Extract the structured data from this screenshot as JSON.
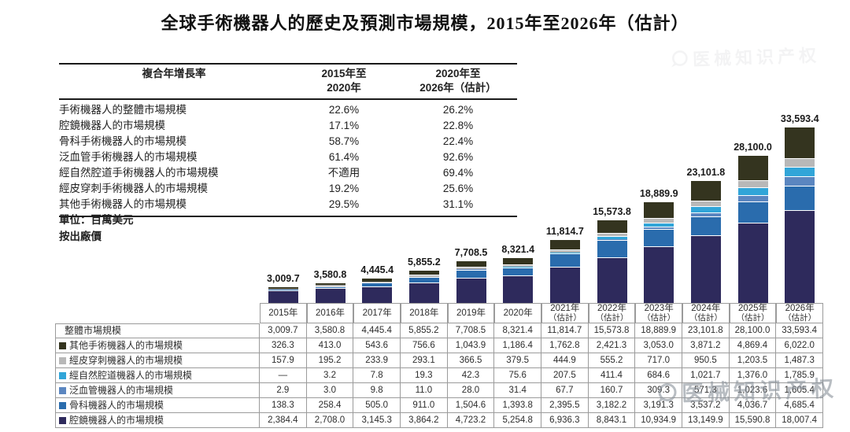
{
  "title": "全球手術機器人的歷史及預測市場規模，2015年至2026年（估計）",
  "cagr_table": {
    "header": {
      "label": "複合年增長率",
      "col1_line1": "2015年至",
      "col1_line2": "2020年",
      "col2_line1": "2020年至",
      "col2_line2": "2026年（估計）"
    },
    "rows": [
      {
        "label": "手術機器人的整體市場規模",
        "cagr_2015_2020": "22.6%",
        "cagr_2020_2026": "26.2%"
      },
      {
        "label": "腔鏡機器人的市場規模",
        "cagr_2015_2020": "17.1%",
        "cagr_2020_2026": "22.8%"
      },
      {
        "label": "骨科手術機器人的市場規模",
        "cagr_2015_2020": "58.7%",
        "cagr_2020_2026": "22.4%"
      },
      {
        "label": "泛血管手術機器人的市場規模",
        "cagr_2015_2020": "61.4%",
        "cagr_2020_2026": "92.6%"
      },
      {
        "label": "經自然腔道手術機器人的市場規模",
        "cagr_2015_2020": "不適用",
        "cagr_2020_2026": "69.4%"
      },
      {
        "label": "經皮穿刺手術機器人的市場規模",
        "cagr_2015_2020": "19.2%",
        "cagr_2020_2026": "25.6%"
      },
      {
        "label": "其他手術機器人的市場規模",
        "cagr_2015_2020": "29.5%",
        "cagr_2020_2026": "31.1%"
      }
    ]
  },
  "unit_note_line1": "單位：百萬美元",
  "unit_note_line2": "按出廠價",
  "watermark_text": "医械知识产权",
  "chart_data": {
    "type": "bar",
    "stacked": true,
    "title": "全球手術機器人的歷史及預測市場規模，2015年至2026年（估計）",
    "unit": "百萬美元（按出廠價）",
    "grid": false,
    "ylim": [
      0,
      35000
    ],
    "legend_position": "table-rows",
    "years": [
      {
        "label": "2015年",
        "estimate": false
      },
      {
        "label": "2016年",
        "estimate": false
      },
      {
        "label": "2017年",
        "estimate": false
      },
      {
        "label": "2018年",
        "estimate": false
      },
      {
        "label": "2019年",
        "estimate": false
      },
      {
        "label": "2020年",
        "estimate": false
      },
      {
        "label": "2021年",
        "estimate": true
      },
      {
        "label": "2022年",
        "estimate": true
      },
      {
        "label": "2023年",
        "estimate": true
      },
      {
        "label": "2024年",
        "estimate": true
      },
      {
        "label": "2025年",
        "estimate": true
      },
      {
        "label": "2026年",
        "estimate": true
      }
    ],
    "estimate_suffix": "（估計）",
    "total_row_label": "整體市場規模",
    "totals": [
      3009.7,
      3580.8,
      4445.4,
      5855.2,
      7708.5,
      8321.4,
      11814.7,
      15573.8,
      18889.9,
      23101.8,
      28100.0,
      33593.4
    ],
    "totals_formatted": [
      "3,009.7",
      "3,580.8",
      "4,445.4",
      "5,855.2",
      "7,708.5",
      "8,321.4",
      "11,814.7",
      "15,573.8",
      "18,889.9",
      "23,101.8",
      "28,100.0",
      "33,593.4"
    ],
    "series": [
      {
        "key": "qiangjing",
        "label": "腔鏡機器人的市場規模",
        "color": "#2e2a5c",
        "values": [
          2384.4,
          2708.0,
          3145.3,
          3864.2,
          4723.2,
          5254.8,
          6936.3,
          8843.1,
          10934.9,
          13149.9,
          15590.8,
          18007.4
        ],
        "formatted": [
          "2,384.4",
          "2,708.0",
          "3,145.3",
          "3,864.2",
          "4,723.2",
          "5,254.8",
          "6,936.3",
          "8,843.1",
          "10,934.9",
          "13,149.9",
          "15,590.8",
          "18,007.4"
        ]
      },
      {
        "key": "guke",
        "label": "骨科機器人的市場規模",
        "color": "#2a6cad",
        "values": [
          138.3,
          258.4,
          505.0,
          911.0,
          1504.6,
          1393.8,
          2395.5,
          3182.2,
          3191.3,
          3537.2,
          4036.7,
          4685.4
        ],
        "formatted": [
          "138.3",
          "258.4",
          "505.0",
          "911.0",
          "1,504.6",
          "1,393.8",
          "2,395.5",
          "3,182.2",
          "3,191.3",
          "3,537.2",
          "4,036.7",
          "4,685.4"
        ]
      },
      {
        "key": "fanxueguan",
        "label": "泛血管機器人的市場規模",
        "color": "#5b86c0",
        "values": [
          2.9,
          3.0,
          9.8,
          11.0,
          28.0,
          31.4,
          67.7,
          160.7,
          309.3,
          571.3,
          1023.6,
          1605.4
        ],
        "formatted": [
          "2.9",
          "3.0",
          "9.8",
          "11.0",
          "28.0",
          "31.4",
          "67.7",
          "160.7",
          "309.3",
          "571.3",
          "1,023.6",
          "1,605.4"
        ]
      },
      {
        "key": "ziranqiangdao",
        "label": "經自然腔道機器人的市場規模",
        "color": "#31a5d8",
        "values": [
          null,
          3.2,
          7.8,
          19.3,
          42.3,
          75.6,
          207.5,
          411.4,
          684.6,
          1021.7,
          1376.0,
          1785.9
        ],
        "formatted": [
          "—",
          "3.2",
          "7.8",
          "19.3",
          "42.3",
          "75.6",
          "207.5",
          "411.4",
          "684.6",
          "1,021.7",
          "1,376.0",
          "1,785.9"
        ]
      },
      {
        "key": "jingpichuanci",
        "label": "經皮穿刺機器人的市場規模",
        "color": "#b8b8b8",
        "values": [
          157.9,
          195.2,
          233.9,
          293.1,
          366.5,
          379.5,
          444.9,
          555.2,
          717.0,
          950.5,
          1203.5,
          1487.3
        ],
        "formatted": [
          "157.9",
          "195.2",
          "233.9",
          "293.1",
          "366.5",
          "379.5",
          "444.9",
          "555.2",
          "717.0",
          "950.5",
          "1,203.5",
          "1,487.3"
        ]
      },
      {
        "key": "qita",
        "label": "其他手術機器人的市場規模",
        "color": "#34341f",
        "values": [
          326.3,
          413.0,
          543.6,
          756.6,
          1043.9,
          1186.4,
          1762.8,
          2421.3,
          3053.0,
          3871.2,
          4869.4,
          6022.0
        ],
        "formatted": [
          "326.3",
          "413.0",
          "543.6",
          "756.6",
          "1,043.9",
          "1,186.4",
          "1,762.8",
          "2,421.3",
          "3,053.0",
          "3,871.2",
          "4,869.4",
          "6,022.0"
        ]
      }
    ],
    "table_row_order": [
      "total",
      "qita",
      "jingpichuanci",
      "ziranqiangdao",
      "fanxueguan",
      "guke",
      "qiangjing"
    ]
  }
}
